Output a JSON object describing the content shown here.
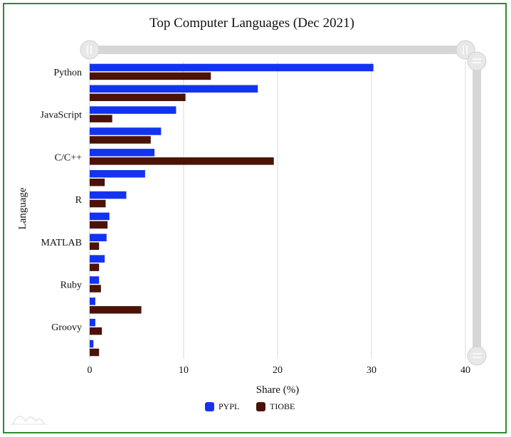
{
  "chart_data": {
    "type": "bar",
    "orientation": "horizontal",
    "title": "Top Computer Languages (Dec 2021)",
    "xlabel": "Share (%)",
    "ylabel": "Language",
    "xlim": [
      0,
      40
    ],
    "xticks": [
      0,
      10,
      20,
      30,
      40
    ],
    "grid": true,
    "legend_position": "bottom",
    "categories": [
      "Python",
      "",
      "JavaScript",
      "",
      "C/C++",
      "",
      "R",
      "",
      "MATLAB",
      "",
      "Ruby",
      "",
      "Groovy",
      ""
    ],
    "series": [
      {
        "name": "PYPL",
        "color": "#1433f0",
        "values": [
          30.2,
          17.9,
          9.2,
          7.6,
          6.9,
          5.9,
          3.9,
          2.1,
          1.8,
          1.6,
          1.0,
          0.6,
          0.6,
          0.4
        ]
      },
      {
        "name": "TIOBE",
        "color": "#4a1306",
        "values": [
          12.9,
          10.2,
          2.4,
          6.5,
          19.6,
          1.6,
          1.7,
          1.9,
          1.0,
          1.0,
          1.2,
          5.5,
          1.3,
          1.0
        ]
      }
    ]
  },
  "colors": {
    "frame_border": "#2e8b2e",
    "gridline": "#d9d9d9",
    "scrollbar": "#d6d6d6",
    "scroll_handle": "#e6e6e6"
  }
}
